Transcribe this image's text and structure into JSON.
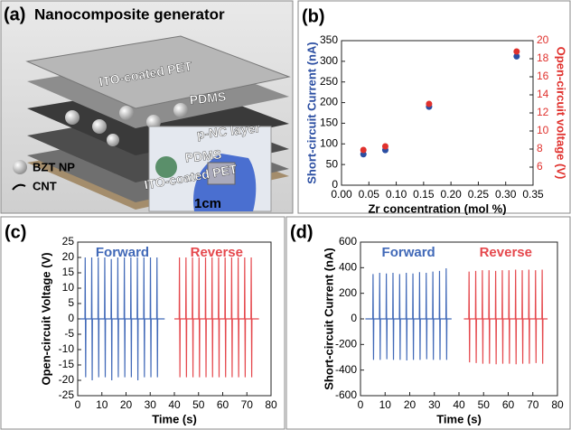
{
  "illustration": {
    "panel_label": "(a)",
    "title": "Nanocomposite generator",
    "layers": [
      "ITO-coated PET",
      "PDMS",
      "p-NC layer",
      "PDMS",
      "ITO-coated PET"
    ],
    "legend": [
      "BZT NP",
      "CNT"
    ],
    "scale_bar": "1cm"
  },
  "chart_data": [
    {
      "type": "scatter",
      "panel_label": "(b)",
      "xlabel": "Zr concentration (mol %)",
      "ylabel": "Short-circuit Current (nA)",
      "y2label": "Open-circuit voltage (V)",
      "xlim": [
        0,
        0.35
      ],
      "xticks": [
        {
          "value": 0,
          "label": "0.00"
        },
        {
          "value": 0.05,
          "label": "0.05"
        },
        {
          "value": 0.1,
          "label": "0.10"
        },
        {
          "value": 0.15,
          "label": "0.15"
        },
        {
          "value": 0.2,
          "label": "0.20"
        },
        {
          "value": 0.25,
          "label": "0.25"
        },
        {
          "value": 0.3,
          "label": "0.30"
        },
        {
          "value": 0.35,
          "label": "0.35"
        }
      ],
      "ylim": [
        0,
        350
      ],
      "yticks": [
        0,
        50,
        100,
        150,
        200,
        250,
        300,
        350
      ],
      "y2lim": [
        4,
        20
      ],
      "y2ticks": [
        6,
        8,
        10,
        12,
        14,
        16,
        18,
        20
      ],
      "series": [
        {
          "color": "#2b4ea2",
          "x": [
            0.04,
            0.08,
            0.16,
            0.32
          ],
          "values": [
            75,
            85,
            190,
            312
          ]
        },
        {
          "color": "#e0312d",
          "axis": "y2",
          "x": [
            0.04,
            0.08,
            0.16,
            0.32
          ],
          "values": [
            7.9,
            8.3,
            13,
            18.8
          ]
        }
      ]
    },
    {
      "type": "line",
      "panel_label": "(c)",
      "xlabel": "Time (s)",
      "ylabel": "Open-circuit Voltage (V)",
      "xlim": [
        0,
        80
      ],
      "xticks": [
        0,
        10,
        20,
        30,
        40,
        50,
        60,
        70,
        80
      ],
      "ylim": [
        -25,
        25
      ],
      "yticks": [
        -25,
        -20,
        -15,
        -10,
        -5,
        0,
        5,
        10,
        15,
        20,
        25
      ],
      "series": [
        {
          "name": "Forward",
          "color": "#4169b8",
          "x": [
            1,
            3,
            3.1,
            3.3,
            3.4,
            5.7,
            5.8,
            6,
            6.1,
            8.4,
            8.5,
            8.7,
            8.8,
            11.1,
            11.2,
            11.4,
            11.5,
            13.8,
            13.9,
            14.1,
            14.2,
            16.5,
            16.6,
            16.8,
            16.9,
            19.2,
            19.3,
            19.5,
            19.6,
            21.9,
            22,
            22.2,
            22.3,
            24.6,
            24.7,
            24.9,
            25,
            27.3,
            27.4,
            27.6,
            27.7,
            30,
            30.1,
            30.3,
            30.4,
            32.7,
            32.8,
            33,
            33.1,
            36
          ],
          "values": [
            0,
            0,
            20,
            -19,
            0,
            0,
            20,
            -20,
            0,
            0,
            20,
            -19,
            0,
            0,
            20,
            -19,
            0,
            0,
            19.5,
            -20,
            0,
            0,
            20,
            -19,
            0,
            0,
            20,
            -19,
            0,
            0,
            20,
            -19,
            0,
            0,
            20,
            -20,
            0,
            0,
            20,
            -19,
            0,
            0,
            20,
            -19,
            0,
            0,
            20,
            -19,
            0,
            0
          ]
        },
        {
          "name": "Reverse",
          "color": "#e5484d",
          "x": [
            40,
            42,
            42.1,
            42.3,
            42.4,
            44.7,
            44.8,
            45,
            45.1,
            47.4,
            47.5,
            47.7,
            47.8,
            50.1,
            50.2,
            50.4,
            50.5,
            52.8,
            52.9,
            53.1,
            53.2,
            55.5,
            55.6,
            55.8,
            55.9,
            58.2,
            58.3,
            58.5,
            58.6,
            60.9,
            61,
            61.2,
            61.3,
            63.6,
            63.7,
            63.9,
            64,
            66.3,
            66.4,
            66.6,
            66.7,
            69,
            69.1,
            69.3,
            69.4,
            71.7,
            71.8,
            72,
            72.1,
            75
          ],
          "values": [
            0,
            0,
            20,
            -19,
            0,
            0,
            20,
            -19,
            0,
            0,
            20,
            -19,
            0,
            0,
            20,
            -19,
            0,
            0,
            20,
            -19,
            0,
            0,
            20,
            -19,
            0,
            0,
            20,
            -19,
            0,
            0,
            20,
            -19,
            0,
            0,
            20,
            -19,
            0,
            0,
            20,
            -19,
            0,
            0,
            20,
            -19,
            0,
            0,
            20,
            -19,
            0,
            0
          ]
        }
      ]
    },
    {
      "type": "line",
      "panel_label": "(d)",
      "xlabel": "Time (s)",
      "ylabel": "Short-circuit Current (nA)",
      "xlim": [
        0,
        80
      ],
      "xticks": [
        0,
        10,
        20,
        30,
        40,
        50,
        60,
        70,
        80
      ],
      "ylim": [
        -600,
        600
      ],
      "yticks": [
        -600,
        -400,
        -200,
        0,
        200,
        400,
        600
      ],
      "series": [
        {
          "name": "Forward",
          "color": "#4169b8",
          "x": [
            2,
            5,
            5.1,
            5.3,
            5.4,
            7.7,
            7.8,
            8,
            8.1,
            10.4,
            10.5,
            10.7,
            10.8,
            13.1,
            13.2,
            13.4,
            13.5,
            15.8,
            15.9,
            16.1,
            16.2,
            18.5,
            18.6,
            18.8,
            18.9,
            21.2,
            21.3,
            21.5,
            21.6,
            23.9,
            24,
            24.2,
            24.3,
            26.6,
            26.7,
            26.9,
            27,
            29.3,
            29.4,
            29.6,
            29.7,
            32,
            32.1,
            32.3,
            32.4,
            34.7,
            34.8,
            35,
            35.1,
            37
          ],
          "values": [
            0,
            0,
            350,
            -320,
            0,
            0,
            360,
            -320,
            0,
            0,
            355,
            -315,
            0,
            0,
            360,
            -320,
            0,
            0,
            350,
            -320,
            0,
            0,
            360,
            -325,
            0,
            0,
            355,
            -320,
            0,
            0,
            365,
            -320,
            0,
            0,
            360,
            -315,
            0,
            0,
            370,
            -320,
            0,
            0,
            375,
            -320,
            0,
            0,
            395,
            -320,
            0,
            0
          ]
        },
        {
          "name": "Reverse",
          "color": "#e5484d",
          "x": [
            42,
            44,
            44.1,
            44.3,
            44.4,
            46.7,
            46.8,
            47,
            47.1,
            49.4,
            49.5,
            49.7,
            49.8,
            52.1,
            52.2,
            52.4,
            52.5,
            54.8,
            54.9,
            55.1,
            55.2,
            57.5,
            57.6,
            57.8,
            57.9,
            60.2,
            60.3,
            60.5,
            60.6,
            62.9,
            63,
            63.2,
            63.3,
            65.6,
            65.7,
            65.9,
            66,
            68.3,
            68.4,
            68.6,
            68.7,
            71,
            71.1,
            71.3,
            71.4,
            73.7,
            73.8,
            74,
            74.1,
            76
          ],
          "values": [
            0,
            0,
            370,
            -340,
            0,
            0,
            375,
            -345,
            0,
            0,
            380,
            -350,
            0,
            0,
            380,
            -350,
            0,
            0,
            375,
            -355,
            0,
            0,
            380,
            -350,
            0,
            0,
            380,
            -350,
            0,
            0,
            385,
            -355,
            0,
            0,
            380,
            -350,
            0,
            0,
            385,
            -350,
            0,
            0,
            380,
            -345,
            0,
            0,
            385,
            -350,
            0,
            0
          ]
        }
      ]
    }
  ]
}
